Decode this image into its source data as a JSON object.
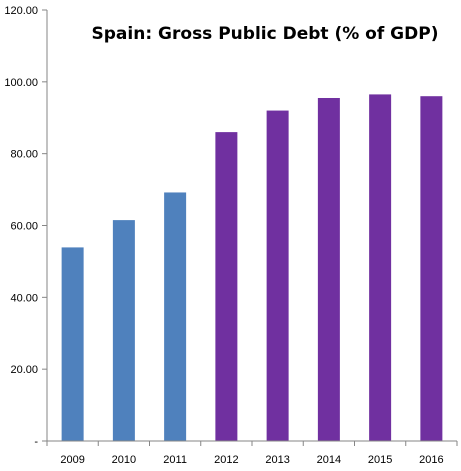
{
  "chart_data": {
    "type": "bar",
    "title": "Spain: Gross Public Debt (% of GDP)",
    "xlabel": "",
    "ylabel": "",
    "categories": [
      "2009",
      "2010",
      "2011",
      "2012",
      "2013",
      "2014",
      "2015",
      "2016"
    ],
    "values": [
      53.9,
      61.5,
      69.2,
      86.0,
      92.0,
      95.5,
      96.5,
      96.0
    ],
    "bar_colors": [
      "#4f81bd",
      "#4f81bd",
      "#4f81bd",
      "#7030a0",
      "#7030a0",
      "#7030a0",
      "#7030a0",
      "#7030a0"
    ],
    "ylim": [
      0,
      120
    ],
    "yticks": [
      0,
      20,
      40,
      60,
      80,
      100,
      120
    ],
    "ytick_labels": [
      "-",
      "20.00",
      "40.00",
      "60.00",
      "80.00",
      "100.00",
      "120.00"
    ],
    "grid": false,
    "legend": "none"
  }
}
